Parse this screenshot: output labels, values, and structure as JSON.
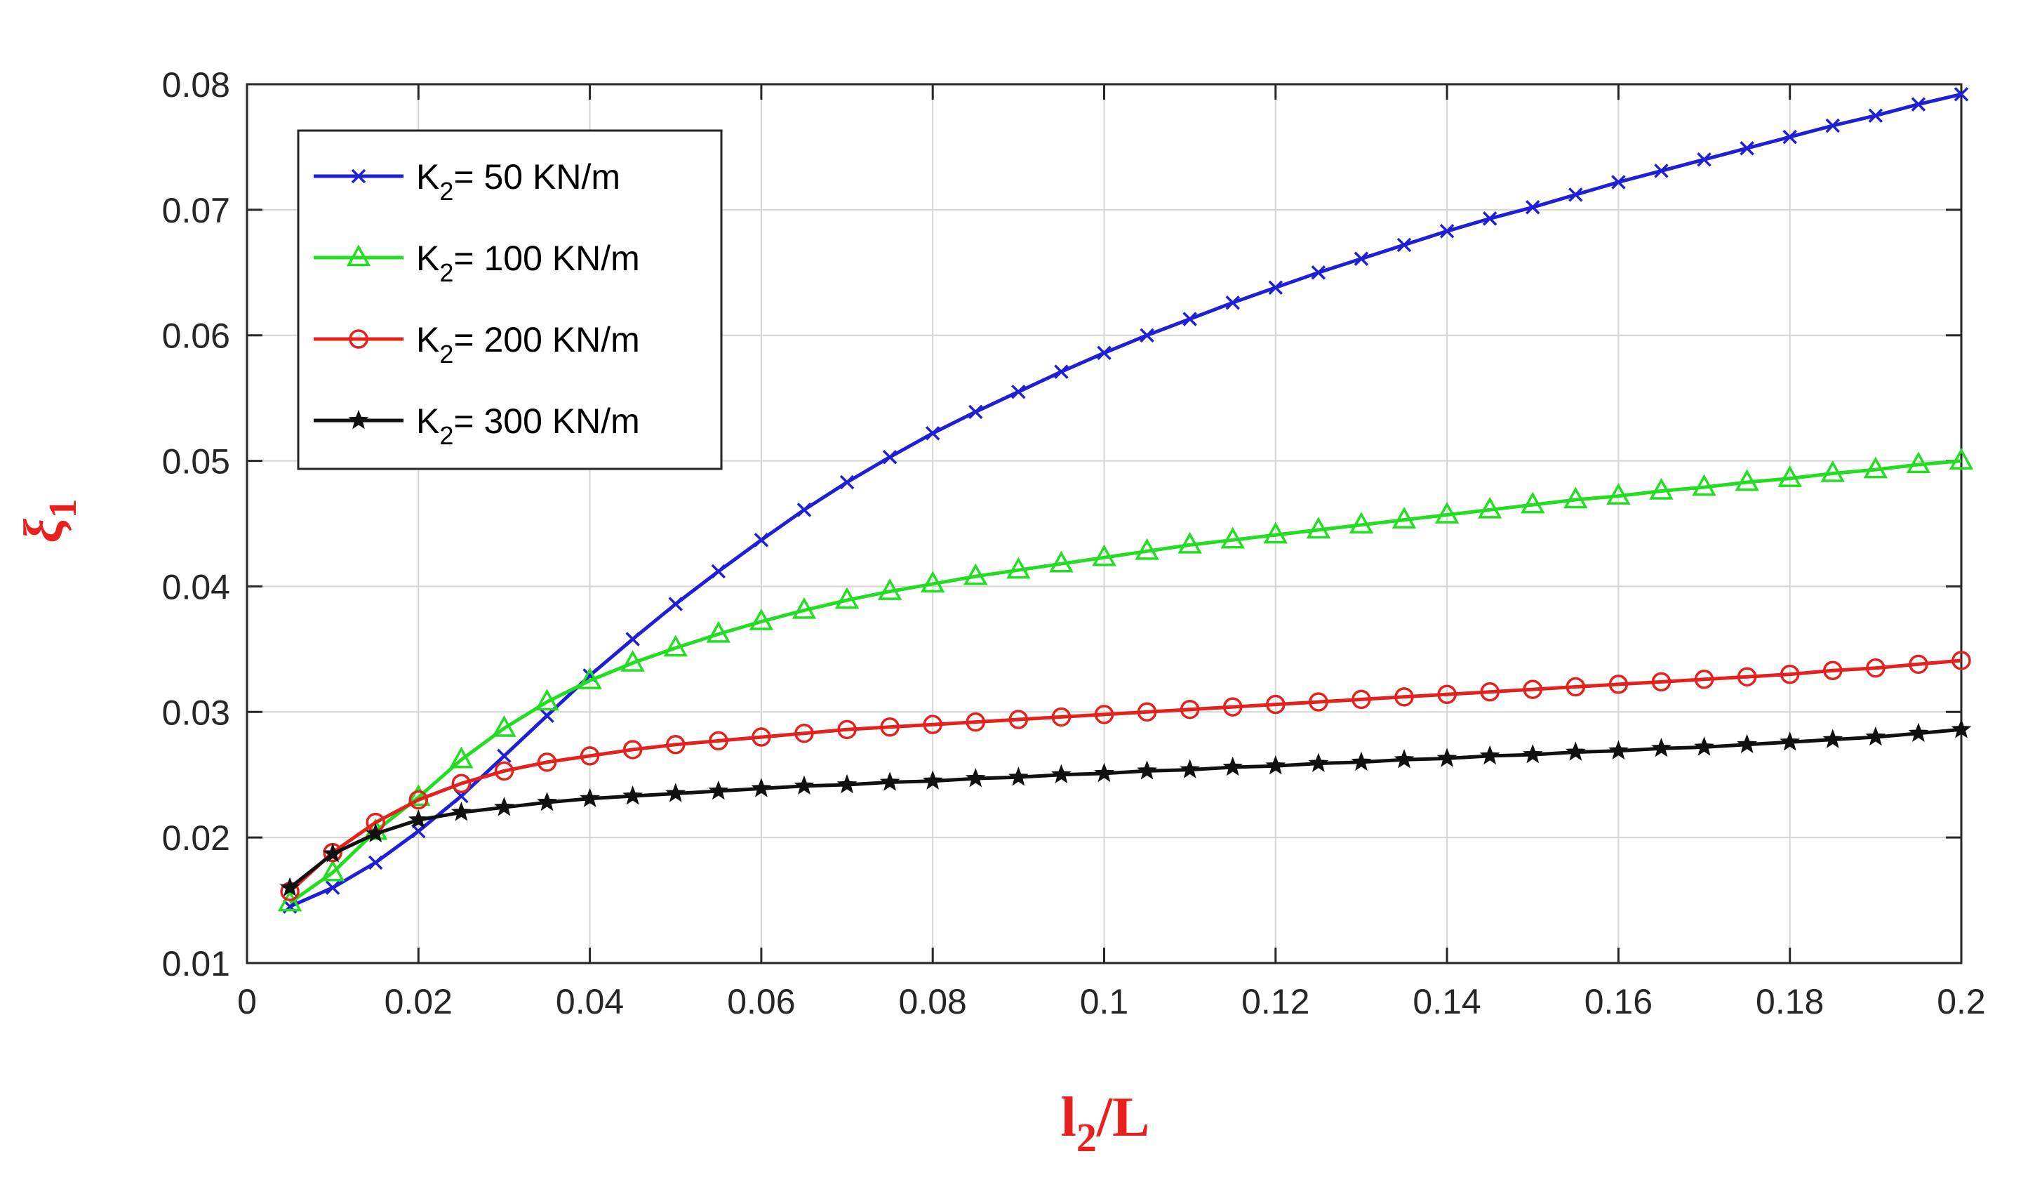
{
  "chart_data": {
    "type": "line",
    "title": "",
    "xlabel": {
      "main": "l",
      "sub": "2",
      "rest": "/L"
    },
    "ylabel": {
      "main": "ξ",
      "sub": "1"
    },
    "xlim": [
      0,
      0.2
    ],
    "ylim": [
      0.01,
      0.08
    ],
    "x_ticks": [
      0,
      0.02,
      0.04,
      0.06,
      0.08,
      0.1,
      0.12,
      0.14,
      0.16,
      0.18,
      0.2
    ],
    "x_tick_labels": [
      "0",
      "0.02",
      "0.04",
      "0.06",
      "0.08",
      "0.1",
      "0.12",
      "0.14",
      "0.16",
      "0.18",
      "0.2"
    ],
    "y_ticks": [
      0.01,
      0.02,
      0.03,
      0.04,
      0.05,
      0.06,
      0.07,
      0.08
    ],
    "y_tick_labels": [
      "0.01",
      "0.02",
      "0.03",
      "0.04",
      "0.05",
      "0.06",
      "0.07",
      "0.08"
    ],
    "grid": true,
    "legend_position": "top-left",
    "x": [
      0.005,
      0.01,
      0.015,
      0.02,
      0.025,
      0.03,
      0.035,
      0.04,
      0.045,
      0.05,
      0.055,
      0.06,
      0.065,
      0.07,
      0.075,
      0.08,
      0.085,
      0.09,
      0.095,
      0.1,
      0.105,
      0.11,
      0.115,
      0.12,
      0.125,
      0.13,
      0.135,
      0.14,
      0.145,
      0.15,
      0.155,
      0.16,
      0.165,
      0.17,
      0.175,
      0.18,
      0.185,
      0.19,
      0.195,
      0.2
    ],
    "series": [
      {
        "name": "K2 = 50 KN/m",
        "legend_main": "K",
        "legend_sub": "2",
        "legend_rest": "= 50 KN/m",
        "color": "#1f1fd6",
        "marker": "x",
        "values": [
          0.0145,
          0.016,
          0.018,
          0.0205,
          0.0233,
          0.0265,
          0.0297,
          0.0329,
          0.0358,
          0.0386,
          0.0412,
          0.0437,
          0.0461,
          0.0483,
          0.0503,
          0.0522,
          0.0539,
          0.0555,
          0.0571,
          0.0586,
          0.06,
          0.0613,
          0.0626,
          0.0638,
          0.065,
          0.0661,
          0.0672,
          0.0683,
          0.0693,
          0.0702,
          0.0712,
          0.0722,
          0.0731,
          0.074,
          0.0749,
          0.0758,
          0.0767,
          0.0775,
          0.0784,
          0.0792
        ]
      },
      {
        "name": "K2 = 100 KN/m",
        "legend_main": "K",
        "legend_sub": "2",
        "legend_rest": "= 100 KN/m",
        "color": "#22dd22",
        "marker": "triangle",
        "values": [
          0.0148,
          0.0172,
          0.0205,
          0.0232,
          0.0262,
          0.0287,
          0.0308,
          0.0325,
          0.0339,
          0.0351,
          0.0362,
          0.0372,
          0.0381,
          0.0389,
          0.0396,
          0.0402,
          0.0408,
          0.0413,
          0.0418,
          0.0423,
          0.0428,
          0.0433,
          0.0437,
          0.0441,
          0.0445,
          0.0449,
          0.0453,
          0.0457,
          0.0461,
          0.0465,
          0.0469,
          0.0472,
          0.0476,
          0.0479,
          0.0483,
          0.0486,
          0.049,
          0.0493,
          0.0497,
          0.05
        ]
      },
      {
        "name": "K2 = 200 KN/m",
        "legend_main": "K",
        "legend_sub": "2",
        "legend_rest": "= 200 KN/m",
        "color": "#e3221e",
        "marker": "circle",
        "values": [
          0.0157,
          0.0188,
          0.0212,
          0.023,
          0.0243,
          0.0253,
          0.026,
          0.0265,
          0.027,
          0.0274,
          0.0277,
          0.028,
          0.0283,
          0.0286,
          0.0288,
          0.029,
          0.0292,
          0.0294,
          0.0296,
          0.0298,
          0.03,
          0.0302,
          0.0304,
          0.0306,
          0.0308,
          0.031,
          0.0312,
          0.0314,
          0.0316,
          0.0318,
          0.032,
          0.0322,
          0.0324,
          0.0326,
          0.0328,
          0.033,
          0.0333,
          0.0335,
          0.0338,
          0.0341
        ]
      },
      {
        "name": "K2 = 300 KN/m",
        "legend_main": "K",
        "legend_sub": "2",
        "legend_rest": "= 300 KN/m",
        "color": "#111111",
        "marker": "star",
        "values": [
          0.016,
          0.0187,
          0.0203,
          0.0214,
          0.022,
          0.0224,
          0.0228,
          0.0231,
          0.0233,
          0.0235,
          0.0237,
          0.0239,
          0.0241,
          0.0242,
          0.0244,
          0.0245,
          0.0247,
          0.0248,
          0.025,
          0.0251,
          0.0253,
          0.0254,
          0.0256,
          0.0257,
          0.0259,
          0.026,
          0.0262,
          0.0263,
          0.0265,
          0.0266,
          0.0268,
          0.0269,
          0.0271,
          0.0272,
          0.0274,
          0.0276,
          0.0278,
          0.028,
          0.0283,
          0.0286
        ]
      }
    ]
  }
}
